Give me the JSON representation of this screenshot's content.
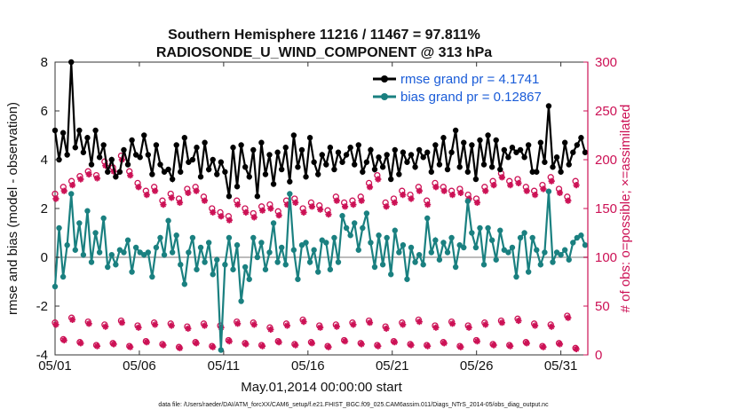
{
  "chart_data": {
    "type": "line",
    "title": "Southern Hemisphere 11216 / 11467 = 97.811%",
    "subtitle": "RADIOSONDE_U_WIND_COMPONENT @ 313 hPa",
    "xlabel": "May.01,2014 00:00:00 start",
    "ylabel": "rmse and bias (model - observation)",
    "y2label": "# of obs: o=possible; ×=assimilated",
    "footer": "data file: /Users/raeder/DAI/ATM_forcXX/CAM6_setup/f.e21.FHIST_BGC.f09_025.CAM6assim.011/Diags_NTrS_2014-05/obs_diag_output.nc",
    "xlim": [
      0,
      31.6
    ],
    "ylim": [
      -4,
      8
    ],
    "y2lim": [
      0,
      300
    ],
    "xticks": [
      0,
      5,
      10,
      15,
      20,
      25,
      30
    ],
    "xtick_labels": [
      "05/01",
      "05/06",
      "05/11",
      "05/16",
      "05/21",
      "05/26",
      "05/31"
    ],
    "yticks": [
      -4,
      -2,
      0,
      2,
      4,
      6,
      8
    ],
    "ytick_labels": [
      "-4",
      "-2",
      "0",
      "2",
      "4",
      "6",
      "8"
    ],
    "y2ticks": [
      0,
      50,
      100,
      150,
      200,
      250,
      300
    ],
    "y2tick_labels": [
      "0",
      "50",
      "100",
      "150",
      "200",
      "250",
      "300"
    ],
    "legend_position": "top-right",
    "colors": {
      "rmse": "#000000",
      "bias": "#1a8080",
      "obs": "#cc1155",
      "zero": "#bbbbbb"
    },
    "rmse_series": {
      "name": "rmse grand pr = 4.1741",
      "values": [
        5.2,
        4.0,
        5.1,
        4.2,
        8.0,
        4.5,
        5.2,
        4.3,
        4.9,
        3.8,
        5.2,
        4.1,
        4.6,
        3.5,
        4.0,
        3.3,
        3.5,
        4.4,
        3.8,
        4.8,
        4.2,
        4.1,
        5.0,
        4.2,
        3.4,
        4.6,
        3.8,
        3.5,
        3.6,
        3.2,
        4.6,
        3.5,
        4.9,
        3.9,
        4.0,
        4.5,
        3.3,
        4.7,
        3.6,
        4.0,
        3.4,
        3.9,
        3.5,
        2.5,
        4.5,
        2.9,
        4.6,
        3.7,
        3.3,
        4.4,
        2.5,
        4.7,
        3.4,
        4.2,
        3.0,
        4.3,
        3.6,
        4.5,
        3.1,
        5.0,
        3.7,
        4.4,
        3.3,
        4.9,
        3.9,
        3.4,
        4.2,
        3.8,
        4.5,
        3.6,
        4.3,
        3.9,
        4.2,
        4.5,
        3.8,
        4.6,
        3.5,
        3.9,
        4.4,
        3.6,
        4.1,
        3.7,
        4.2,
        3.2,
        4.4,
        3.4,
        4.3,
        3.9,
        4.2,
        3.7,
        4.4,
        4.1,
        4.3,
        3.5,
        4.6,
        3.8,
        4.9,
        3.6,
        4.3,
        5.2,
        3.7,
        4.7,
        3.5,
        4.6,
        3.2,
        4.8,
        3.8,
        5.0,
        3.7,
        4.8,
        3.6,
        4.4,
        4.1,
        4.5,
        4.3,
        4.4,
        4.1,
        4.6,
        3.5,
        3.5,
        4.7,
        3.9,
        6.2,
        3.7,
        4.1,
        3.5,
        4.7,
        3.8,
        4.3,
        4.6,
        4.9,
        4.3
      ],
      "x_start": 0,
      "x_step": 0.24
    },
    "bias_series": {
      "name": "bias grand pr = 0.12867",
      "values": [
        -1.2,
        1.2,
        -0.8,
        0.5,
        2.6,
        0.3,
        1.4,
        0.1,
        1.9,
        -0.2,
        1.0,
        0.2,
        1.6,
        -0.4,
        0.1,
        -0.3,
        0.3,
        0.2,
        0.7,
        -0.6,
        0.4,
        0.2,
        0.1,
        0.2,
        -0.8,
        0.4,
        0.8,
        0.1,
        1.5,
        0.2,
        0.9,
        -0.3,
        -1.1,
        0.2,
        0.8,
        -0.5,
        0.4,
        -0.2,
        0.6,
        -0.7,
        -0.1,
        -3.8,
        -0.3,
        0.8,
        -0.5,
        0.5,
        -1.8,
        -0.4,
        -0.9,
        0.8,
        0.0,
        0.6,
        -0.5,
        0.2,
        1.4,
        -0.2,
        0.4,
        -0.3,
        2.6,
        0.3,
        -0.9,
        0.5,
        0.6,
        -0.2,
        0.3,
        -0.6,
        0.7,
        0.6,
        -0.5,
        0.8,
        -0.2,
        1.7,
        1.2,
        0.9,
        1.4,
        0.3,
        1.2,
        1.8,
        0.6,
        -0.4,
        0.9,
        -0.3,
        0.8,
        -0.7,
        1.1,
        0.2,
        0.5,
        -0.9,
        0.4,
        -0.2,
        0.1,
        -0.3,
        1.6,
        0.2,
        0.7,
        -0.1,
        0.6,
        0.2,
        0.8,
        -0.4,
        0.5,
        0.4,
        2.3,
        1.0,
        0.4,
        1.2,
        -0.3,
        1.2,
        0.7,
        -0.1,
        1.1,
        0.3,
        0.2,
        0.4,
        -0.8,
        0.8,
        1.0,
        -0.6,
        0.8,
        0.3,
        -0.3,
        0.2,
        2.7,
        -0.2,
        0.2,
        0.1,
        0.3,
        -0.1,
        0.6,
        0.8,
        0.9,
        0.5
      ],
      "x_start": 0,
      "x_step": 0.24
    },
    "obs_possible_upper": {
      "values": [
        165,
        172,
        178,
        183,
        188,
        184,
        198,
        192,
        204,
        188,
        176,
        168,
        172,
        158,
        165,
        160,
        170,
        172,
        162,
        150,
        146,
        142,
        158,
        150,
        145,
        152,
        154,
        147,
        158,
        160,
        150,
        156,
        153,
        148,
        162,
        156,
        158,
        162,
        176,
        184,
        156,
        160,
        168,
        164,
        172,
        158,
        176,
        172,
        168,
        170,
        164,
        160,
        172,
        178,
        186,
        178,
        180,
        172,
        168,
        174,
        182,
        170,
        162,
        178
      ],
      "x_start": 0,
      "x_step": 0.49
    },
    "obs_assimilated_upper": {
      "values": [
        160,
        168,
        174,
        180,
        185,
        181,
        194,
        188,
        200,
        184,
        172,
        164,
        168,
        154,
        161,
        156,
        166,
        168,
        158,
        146,
        142,
        138,
        154,
        146,
        141,
        148,
        150,
        143,
        154,
        156,
        146,
        152,
        149,
        144,
        158,
        152,
        154,
        158,
        172,
        180,
        152,
        156,
        164,
        160,
        168,
        154,
        172,
        168,
        164,
        166,
        160,
        156,
        168,
        174,
        182,
        174,
        176,
        168,
        164,
        170,
        178,
        166,
        158,
        174
      ],
      "x_start": 0.05,
      "x_step": 0.49
    },
    "obs_possible_lower": {
      "values": [
        33,
        16,
        38,
        13,
        34,
        10,
        31,
        12,
        35,
        9,
        30,
        14,
        33,
        11,
        32,
        8,
        29,
        13,
        32,
        9,
        30,
        15,
        34,
        12,
        33,
        10,
        28,
        14,
        32,
        11,
        36,
        13,
        30,
        9,
        31,
        15,
        33,
        12,
        35,
        10,
        29,
        14,
        33,
        11,
        36,
        10,
        30,
        13,
        34,
        9,
        30,
        15,
        33,
        11,
        35,
        10,
        37,
        13,
        32,
        9,
        31,
        12,
        40,
        7
      ],
      "x_start": 0,
      "x_step": 0.49
    },
    "obs_assimilated_lower": {
      "values": [
        31,
        15,
        36,
        12,
        32,
        9,
        29,
        11,
        33,
        8,
        28,
        13,
        31,
        10,
        30,
        7,
        27,
        12,
        30,
        8,
        28,
        14,
        32,
        11,
        31,
        9,
        26,
        13,
        30,
        10,
        34,
        12,
        28,
        8,
        29,
        14,
        31,
        11,
        33,
        9,
        27,
        13,
        31,
        10,
        34,
        9,
        28,
        12,
        32,
        8,
        28,
        14,
        31,
        10,
        33,
        9,
        35,
        12,
        30,
        8,
        29,
        11,
        38,
        6
      ],
      "x_start": 0.05,
      "x_step": 0.49
    }
  }
}
